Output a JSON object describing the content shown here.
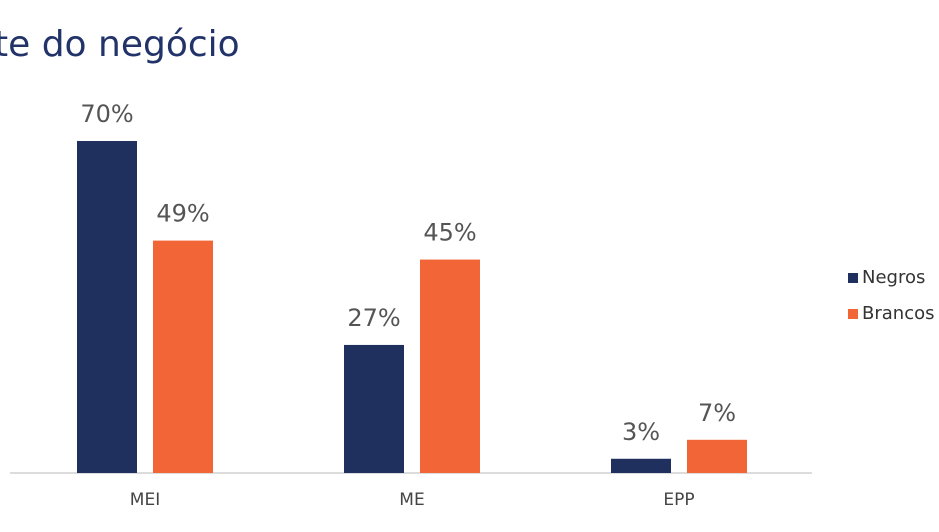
{
  "chart_data": {
    "type": "bar",
    "title": "te do negócio",
    "categories": [
      "MEI",
      "ME",
      "EPP"
    ],
    "series": [
      {
        "name": "Negros",
        "color": "#1f2f5e",
        "values": [
          70,
          27,
          3
        ],
        "value_labels": [
          "70%",
          "27%",
          "3%"
        ]
      },
      {
        "name": "Brancos",
        "color": "#f26536",
        "values": [
          49,
          45,
          7
        ],
        "value_labels": [
          "49%",
          "45%",
          "7%"
        ]
      }
    ],
    "legend": "right"
  }
}
